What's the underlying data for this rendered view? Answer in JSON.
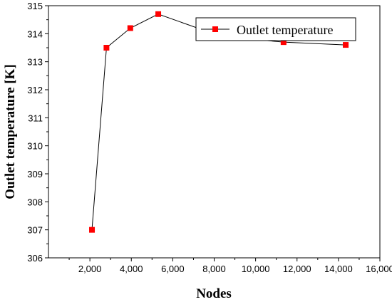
{
  "chart_data": {
    "type": "line",
    "title": "",
    "xlabel": "Nodes",
    "ylabel": "Outlet temperature [K]",
    "xlim": [
      0,
      16000
    ],
    "ylim": [
      306,
      315
    ],
    "xticks": [
      2000,
      4000,
      6000,
      8000,
      10000,
      12000,
      14000,
      16000
    ],
    "xtick_labels": [
      "2,000",
      "4,000",
      "6,000",
      "8,000",
      "10,000",
      "12,000",
      "14,000",
      "16,000"
    ],
    "yticks": [
      306,
      307,
      308,
      309,
      310,
      311,
      312,
      313,
      314,
      315
    ],
    "ytick_labels": [
      "306",
      "307",
      "308",
      "309",
      "310",
      "311",
      "312",
      "313",
      "314",
      "315"
    ],
    "grid": false,
    "legend": "top-right",
    "series": [
      {
        "name": "Outlet temperature",
        "color": "#ff0000",
        "line_color": "#000000",
        "marker": "square",
        "x": [
          2100,
          2800,
          3950,
          5300,
          8350,
          11350,
          14350
        ],
        "y": [
          307.0,
          313.5,
          314.2,
          314.7,
          313.9,
          313.7,
          313.6
        ]
      }
    ]
  }
}
